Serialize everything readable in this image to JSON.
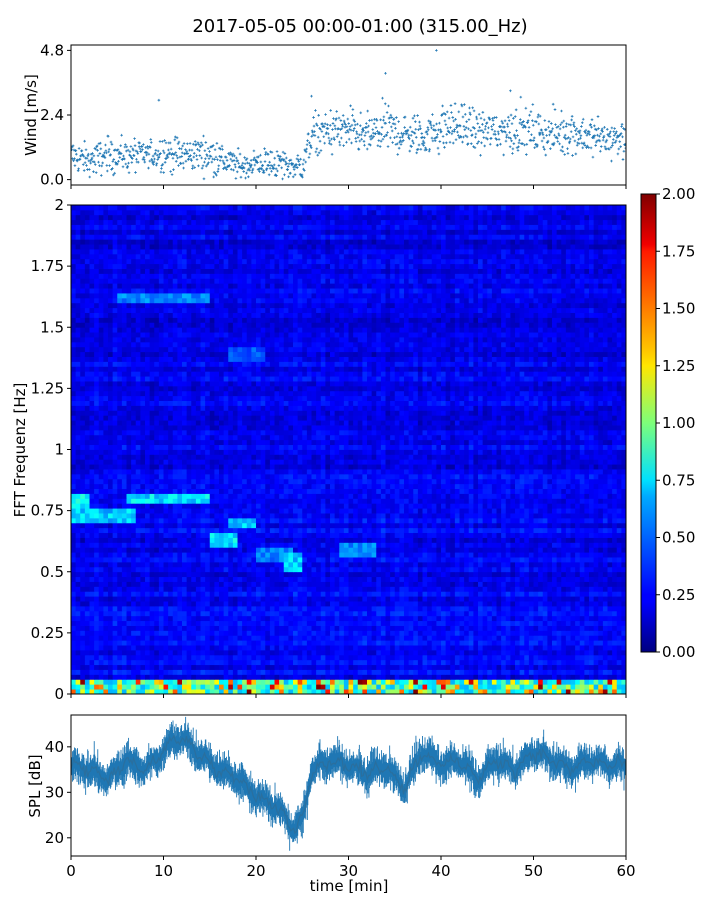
{
  "title": "2017-05-05 00:00-01:00 (315.00_Hz)",
  "chart_data": [
    {
      "type": "scatter",
      "panel": "wind",
      "ylabel": "Wind [m/s]",
      "xlim": [
        0,
        60
      ],
      "ylim": [
        -0.2,
        5.0
      ],
      "yticks": [
        0.0,
        2.4,
        4.8
      ],
      "ytick_labels": [
        "0.0",
        "2.4",
        "4.8"
      ],
      "marker": "+",
      "color": "#1f77b4",
      "x_minutes": [
        0,
        2,
        4,
        6,
        8,
        10,
        12,
        14,
        16,
        18,
        20,
        22,
        24,
        25,
        26,
        28,
        30,
        32,
        34,
        36,
        38,
        40,
        42,
        44,
        46,
        48,
        50,
        52,
        54,
        56,
        58,
        60
      ],
      "wind_mean": [
        0.9,
        0.7,
        0.9,
        0.9,
        0.9,
        1.0,
        0.9,
        1.0,
        0.8,
        0.5,
        0.6,
        0.6,
        0.5,
        0.5,
        1.6,
        1.8,
        1.8,
        1.6,
        1.9,
        1.7,
        1.6,
        1.9,
        2.0,
        1.8,
        1.8,
        1.9,
        1.8,
        1.7,
        1.8,
        1.6,
        1.5,
        1.5
      ],
      "outliers": [
        [
          9.5,
          2.95
        ],
        [
          34,
          3.95
        ],
        [
          39.5,
          4.8
        ],
        [
          26,
          3.1
        ],
        [
          47.5,
          3.3
        ]
      ]
    },
    {
      "type": "heatmap",
      "panel": "spectrogram",
      "ylabel": "FFT Frequenz [Hz]",
      "xlim": [
        0,
        60
      ],
      "ylim": [
        0,
        2
      ],
      "yticks": [
        0,
        0.25,
        0.5,
        0.75,
        1,
        1.25,
        1.5,
        1.75,
        2
      ],
      "ytick_labels": [
        "0",
        "0.25",
        "0.5",
        "0.75",
        "1",
        "1.25",
        "1.5",
        "1.75",
        "2"
      ],
      "colormap": "jet",
      "colorbar": {
        "range": [
          0.0,
          2.0
        ],
        "ticks": [
          0.0,
          0.25,
          0.5,
          0.75,
          1.0,
          1.25,
          1.5,
          1.75,
          2.0
        ],
        "tick_labels": [
          "0.00",
          "0.25",
          "0.50",
          "0.75",
          "1.00",
          "1.25",
          "1.50",
          "1.75",
          "2.00"
        ]
      },
      "base_level": 0.2,
      "features": [
        {
          "x0": 0,
          "x1": 2,
          "f0": 0.78,
          "f1": 0.81,
          "value": 0.8
        },
        {
          "x0": 0,
          "x1": 7,
          "f0": 0.71,
          "f1": 0.74,
          "value": 0.7
        },
        {
          "x0": 6,
          "x1": 15,
          "f0": 0.79,
          "f1": 0.81,
          "value": 0.75
        },
        {
          "x0": 5,
          "x1": 15,
          "f0": 1.61,
          "f1": 1.63,
          "value": 0.55
        },
        {
          "x0": 15,
          "x1": 18,
          "f0": 0.61,
          "f1": 0.65,
          "value": 0.75
        },
        {
          "x0": 17,
          "x1": 20,
          "f0": 0.69,
          "f1": 0.71,
          "value": 0.7
        },
        {
          "x0": 20,
          "x1": 24,
          "f0": 0.55,
          "f1": 0.58,
          "value": 0.55
        },
        {
          "x0": 23,
          "x1": 25,
          "f0": 0.52,
          "f1": 0.56,
          "value": 0.7
        },
        {
          "x0": 29,
          "x1": 33,
          "f0": 0.58,
          "f1": 0.61,
          "value": 0.55
        },
        {
          "x0": 17,
          "x1": 21,
          "f0": 1.38,
          "f1": 1.41,
          "value": 0.45
        }
      ],
      "low_freq_band": {
        "f0": 0,
        "f1": 0.05,
        "value_range": [
          0.6,
          2.0
        ]
      }
    },
    {
      "type": "line",
      "panel": "spl",
      "ylabel": "SPL [dB]",
      "xlabel": "time [min]",
      "xlim": [
        0,
        60
      ],
      "ylim": [
        16,
        47
      ],
      "xticks": [
        0,
        10,
        20,
        30,
        40,
        50,
        60
      ],
      "xtick_labels": [
        "0",
        "10",
        "20",
        "30",
        "40",
        "50",
        "60"
      ],
      "yticks": [
        20,
        30,
        40
      ],
      "ytick_labels": [
        "20",
        "30",
        "40"
      ],
      "color": "#1f77b4",
      "x_minutes": [
        0,
        2,
        4,
        6,
        8,
        10,
        11,
        12,
        13,
        14,
        16,
        18,
        20,
        22,
        23,
        24,
        25,
        26,
        28,
        30,
        32,
        34,
        36,
        38,
        40,
        42,
        44,
        46,
        48,
        50,
        52,
        54,
        56,
        58,
        60
      ],
      "spl_mean": [
        36,
        35,
        33,
        37,
        35,
        39,
        41,
        42,
        40,
        38,
        35,
        33,
        29,
        27,
        25,
        22,
        24,
        35,
        37,
        36,
        34,
        36,
        31,
        39,
        36,
        37,
        33,
        37,
        35,
        39,
        37,
        35,
        37,
        36,
        36
      ]
    }
  ]
}
